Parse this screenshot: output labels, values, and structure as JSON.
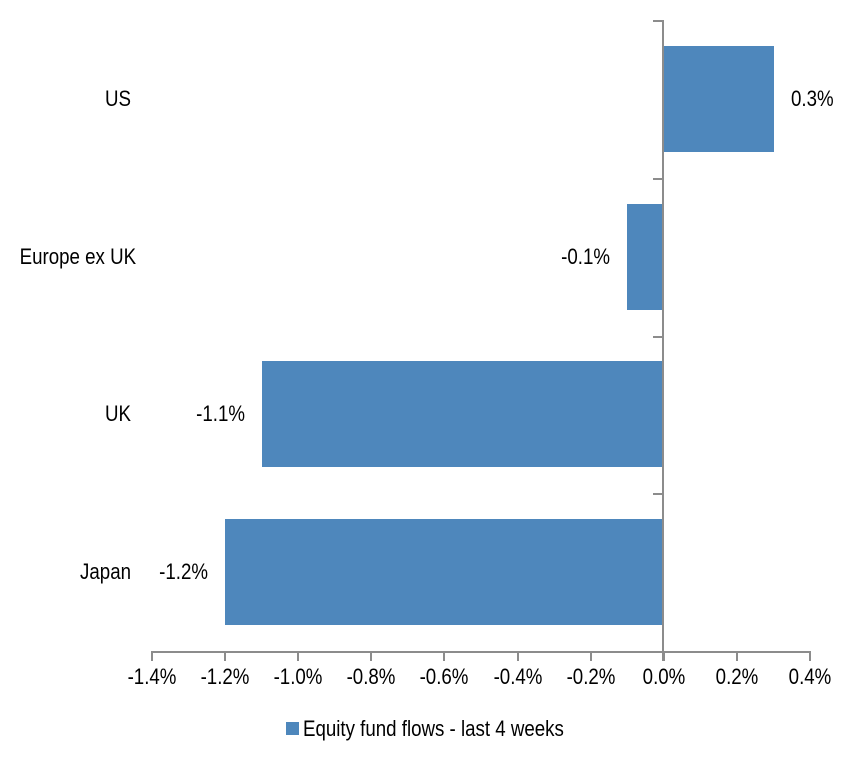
{
  "chart_data": {
    "type": "bar",
    "orientation": "horizontal",
    "title": "",
    "categories": [
      "US",
      "Europe ex UK",
      "UK",
      "Japan"
    ],
    "series": [
      {
        "name": "Equity fund flows - last 4 weeks",
        "values": [
          0.3,
          -0.1,
          -1.1,
          -1.2
        ],
        "value_labels": [
          "0.3%",
          "-0.1%",
          "-1.1%",
          "-1.2%"
        ]
      }
    ],
    "xlim": [
      -1.4,
      0.4
    ],
    "x_tick_values": [
      -1.4,
      -1.2,
      -1.0,
      -0.8,
      -0.6,
      -0.4,
      -0.2,
      0.0,
      0.2,
      0.4
    ],
    "x_tick_labels": [
      "-1.4%",
      "-1.2%",
      "-1.0%",
      "-0.8%",
      "-0.6%",
      "-0.4%",
      "-0.2%",
      "0.0%",
      "0.2%",
      "0.4%"
    ],
    "grid": false,
    "legend_position": "bottom",
    "colors": {
      "bar": "#4E87BC",
      "axis": "#8C8C8C",
      "text": "#000000",
      "background": "#FFFFFF"
    }
  },
  "legend": {
    "label": "Equity fund flows - last 4 weeks"
  }
}
